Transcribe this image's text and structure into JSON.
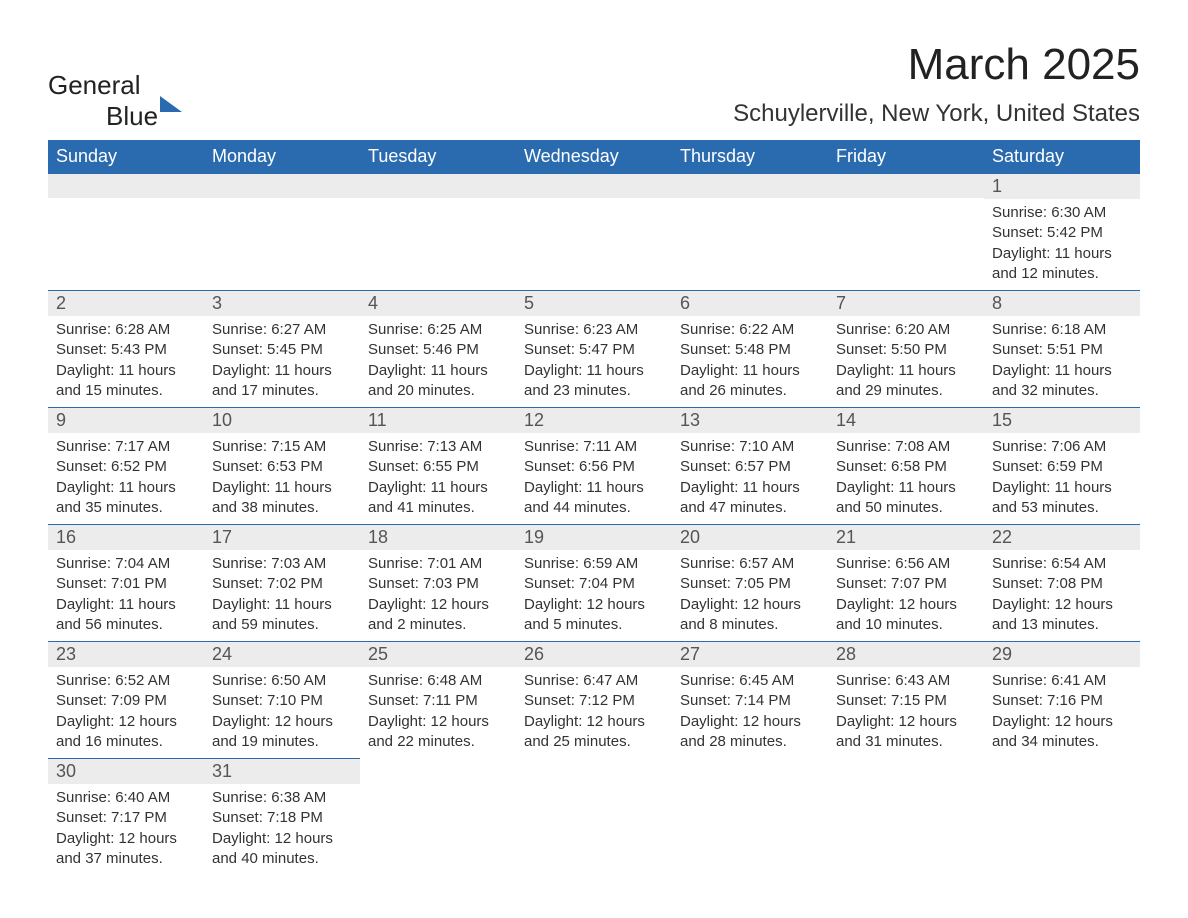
{
  "logo": {
    "word1": "General",
    "word2": "Blue"
  },
  "header": {
    "month_title": "March 2025",
    "location": "Schuylerville, New York, United States"
  },
  "calendar": {
    "header_bg": "#2a6bb0",
    "header_text_color": "#ffffff",
    "daynum_bg": "#ececec",
    "text_color": "#333333",
    "week_headers": [
      "Sunday",
      "Monday",
      "Tuesday",
      "Wednesday",
      "Thursday",
      "Friday",
      "Saturday"
    ],
    "first_weekday_index": 6,
    "days": [
      {
        "n": 1,
        "sunrise": "6:30 AM",
        "sunset": "5:42 PM",
        "daylight": "11 hours and 12 minutes."
      },
      {
        "n": 2,
        "sunrise": "6:28 AM",
        "sunset": "5:43 PM",
        "daylight": "11 hours and 15 minutes."
      },
      {
        "n": 3,
        "sunrise": "6:27 AM",
        "sunset": "5:45 PM",
        "daylight": "11 hours and 17 minutes."
      },
      {
        "n": 4,
        "sunrise": "6:25 AM",
        "sunset": "5:46 PM",
        "daylight": "11 hours and 20 minutes."
      },
      {
        "n": 5,
        "sunrise": "6:23 AM",
        "sunset": "5:47 PM",
        "daylight": "11 hours and 23 minutes."
      },
      {
        "n": 6,
        "sunrise": "6:22 AM",
        "sunset": "5:48 PM",
        "daylight": "11 hours and 26 minutes."
      },
      {
        "n": 7,
        "sunrise": "6:20 AM",
        "sunset": "5:50 PM",
        "daylight": "11 hours and 29 minutes."
      },
      {
        "n": 8,
        "sunrise": "6:18 AM",
        "sunset": "5:51 PM",
        "daylight": "11 hours and 32 minutes."
      },
      {
        "n": 9,
        "sunrise": "7:17 AM",
        "sunset": "6:52 PM",
        "daylight": "11 hours and 35 minutes."
      },
      {
        "n": 10,
        "sunrise": "7:15 AM",
        "sunset": "6:53 PM",
        "daylight": "11 hours and 38 minutes."
      },
      {
        "n": 11,
        "sunrise": "7:13 AM",
        "sunset": "6:55 PM",
        "daylight": "11 hours and 41 minutes."
      },
      {
        "n": 12,
        "sunrise": "7:11 AM",
        "sunset": "6:56 PM",
        "daylight": "11 hours and 44 minutes."
      },
      {
        "n": 13,
        "sunrise": "7:10 AM",
        "sunset": "6:57 PM",
        "daylight": "11 hours and 47 minutes."
      },
      {
        "n": 14,
        "sunrise": "7:08 AM",
        "sunset": "6:58 PM",
        "daylight": "11 hours and 50 minutes."
      },
      {
        "n": 15,
        "sunrise": "7:06 AM",
        "sunset": "6:59 PM",
        "daylight": "11 hours and 53 minutes."
      },
      {
        "n": 16,
        "sunrise": "7:04 AM",
        "sunset": "7:01 PM",
        "daylight": "11 hours and 56 minutes."
      },
      {
        "n": 17,
        "sunrise": "7:03 AM",
        "sunset": "7:02 PM",
        "daylight": "11 hours and 59 minutes."
      },
      {
        "n": 18,
        "sunrise": "7:01 AM",
        "sunset": "7:03 PM",
        "daylight": "12 hours and 2 minutes."
      },
      {
        "n": 19,
        "sunrise": "6:59 AM",
        "sunset": "7:04 PM",
        "daylight": "12 hours and 5 minutes."
      },
      {
        "n": 20,
        "sunrise": "6:57 AM",
        "sunset": "7:05 PM",
        "daylight": "12 hours and 8 minutes."
      },
      {
        "n": 21,
        "sunrise": "6:56 AM",
        "sunset": "7:07 PM",
        "daylight": "12 hours and 10 minutes."
      },
      {
        "n": 22,
        "sunrise": "6:54 AM",
        "sunset": "7:08 PM",
        "daylight": "12 hours and 13 minutes."
      },
      {
        "n": 23,
        "sunrise": "6:52 AM",
        "sunset": "7:09 PM",
        "daylight": "12 hours and 16 minutes."
      },
      {
        "n": 24,
        "sunrise": "6:50 AM",
        "sunset": "7:10 PM",
        "daylight": "12 hours and 19 minutes."
      },
      {
        "n": 25,
        "sunrise": "6:48 AM",
        "sunset": "7:11 PM",
        "daylight": "12 hours and 22 minutes."
      },
      {
        "n": 26,
        "sunrise": "6:47 AM",
        "sunset": "7:12 PM",
        "daylight": "12 hours and 25 minutes."
      },
      {
        "n": 27,
        "sunrise": "6:45 AM",
        "sunset": "7:14 PM",
        "daylight": "12 hours and 28 minutes."
      },
      {
        "n": 28,
        "sunrise": "6:43 AM",
        "sunset": "7:15 PM",
        "daylight": "12 hours and 31 minutes."
      },
      {
        "n": 29,
        "sunrise": "6:41 AM",
        "sunset": "7:16 PM",
        "daylight": "12 hours and 34 minutes."
      },
      {
        "n": 30,
        "sunrise": "6:40 AM",
        "sunset": "7:17 PM",
        "daylight": "12 hours and 37 minutes."
      },
      {
        "n": 31,
        "sunrise": "6:38 AM",
        "sunset": "7:18 PM",
        "daylight": "12 hours and 40 minutes."
      }
    ],
    "labels": {
      "sunrise": "Sunrise: ",
      "sunset": "Sunset: ",
      "daylight": "Daylight: "
    }
  }
}
